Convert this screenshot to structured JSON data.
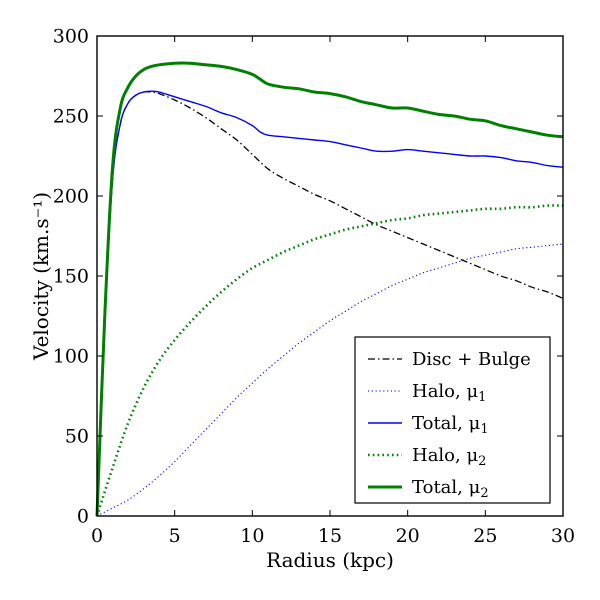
{
  "chart_data": {
    "type": "line",
    "title": "",
    "xlabel": "Radius (kpc)",
    "ylabel": "Velocity (km.s⁻¹)",
    "xlim": [
      0,
      30
    ],
    "ylim": [
      0,
      300
    ],
    "xticks": [
      0,
      5,
      10,
      15,
      20,
      25,
      30
    ],
    "yticks": [
      0,
      50,
      100,
      150,
      200,
      250,
      300
    ],
    "grid": false,
    "legend_position": "lower-right",
    "series": [
      {
        "name": "Disc + Bulge",
        "legend_main": "Disc + Bulge",
        "legend_sub": "",
        "color": "#000000",
        "style": "dashdot",
        "points": [
          [
            0,
            0
          ],
          [
            0.5,
            120
          ],
          [
            1,
            210
          ],
          [
            1.5,
            245
          ],
          [
            2,
            258
          ],
          [
            2.5,
            263
          ],
          [
            3,
            265
          ],
          [
            3.5,
            265
          ],
          [
            4,
            264
          ],
          [
            5,
            260
          ],
          [
            6,
            255
          ],
          [
            7,
            249
          ],
          [
            8,
            242
          ],
          [
            9,
            235
          ],
          [
            10,
            226
          ],
          [
            11,
            217
          ],
          [
            12,
            211
          ],
          [
            13,
            206
          ],
          [
            14,
            201
          ],
          [
            15,
            197
          ],
          [
            16,
            192
          ],
          [
            17,
            187
          ],
          [
            18,
            182
          ],
          [
            19,
            178
          ],
          [
            20,
            174
          ],
          [
            21,
            170
          ],
          [
            22,
            166
          ],
          [
            23,
            162
          ],
          [
            24,
            158
          ],
          [
            25,
            154
          ],
          [
            26,
            150
          ],
          [
            27,
            147
          ],
          [
            28,
            143
          ],
          [
            29,
            140
          ],
          [
            30,
            136
          ]
        ]
      },
      {
        "name": "Halo, μ1",
        "legend_main": "Halo, μ",
        "legend_sub": "1",
        "color": "#0000ff",
        "style": "dotted-thin",
        "points": [
          [
            0,
            0
          ],
          [
            1,
            5
          ],
          [
            2,
            10
          ],
          [
            3,
            17
          ],
          [
            4,
            25
          ],
          [
            5,
            34
          ],
          [
            6,
            44
          ],
          [
            7,
            54
          ],
          [
            8,
            64
          ],
          [
            9,
            74
          ],
          [
            10,
            83
          ],
          [
            11,
            92
          ],
          [
            12,
            100
          ],
          [
            13,
            108
          ],
          [
            14,
            115
          ],
          [
            15,
            122
          ],
          [
            16,
            128
          ],
          [
            17,
            134
          ],
          [
            18,
            139
          ],
          [
            19,
            144
          ],
          [
            20,
            148
          ],
          [
            21,
            152
          ],
          [
            22,
            155
          ],
          [
            23,
            158
          ],
          [
            24,
            161
          ],
          [
            25,
            163
          ],
          [
            26,
            165
          ],
          [
            27,
            167
          ],
          [
            28,
            168
          ],
          [
            29,
            169
          ],
          [
            30,
            170
          ]
        ]
      },
      {
        "name": "Total, μ1",
        "legend_main": "Total, μ",
        "legend_sub": "1",
        "color": "#0000ff",
        "style": "solid-thin",
        "points": [
          [
            0,
            0
          ],
          [
            0.5,
            120
          ],
          [
            1,
            210
          ],
          [
            1.5,
            245
          ],
          [
            2,
            258
          ],
          [
            2.5,
            263
          ],
          [
            3,
            265
          ],
          [
            3.5,
            265.5
          ],
          [
            4,
            265
          ],
          [
            5,
            262
          ],
          [
            6,
            259
          ],
          [
            7,
            256
          ],
          [
            8,
            252
          ],
          [
            9,
            249
          ],
          [
            10,
            244
          ],
          [
            10.5,
            240
          ],
          [
            11,
            238
          ],
          [
            12,
            237
          ],
          [
            13,
            236
          ],
          [
            14,
            235
          ],
          [
            15,
            234
          ],
          [
            16,
            232
          ],
          [
            17,
            230
          ],
          [
            18,
            228
          ],
          [
            19,
            228
          ],
          [
            20,
            229
          ],
          [
            21,
            228
          ],
          [
            22,
            227
          ],
          [
            23,
            226
          ],
          [
            24,
            225
          ],
          [
            25,
            225
          ],
          [
            26,
            224
          ],
          [
            27,
            222
          ],
          [
            28,
            221
          ],
          [
            29,
            219
          ],
          [
            30,
            218
          ]
        ]
      },
      {
        "name": "Halo, μ2",
        "legend_main": "Halo, μ",
        "legend_sub": "2",
        "color": "#008000",
        "style": "dotted-thick",
        "points": [
          [
            0,
            0
          ],
          [
            1,
            30
          ],
          [
            2,
            58
          ],
          [
            3,
            80
          ],
          [
            4,
            97
          ],
          [
            5,
            110
          ],
          [
            6,
            121
          ],
          [
            7,
            131
          ],
          [
            8,
            140
          ],
          [
            9,
            148
          ],
          [
            10,
            155
          ],
          [
            11,
            160
          ],
          [
            12,
            165
          ],
          [
            13,
            169
          ],
          [
            14,
            173
          ],
          [
            15,
            176
          ],
          [
            16,
            179
          ],
          [
            17,
            181
          ],
          [
            18,
            183
          ],
          [
            19,
            185
          ],
          [
            20,
            186
          ],
          [
            21,
            188
          ],
          [
            22,
            189
          ],
          [
            23,
            190
          ],
          [
            24,
            191
          ],
          [
            25,
            192
          ],
          [
            26,
            192
          ],
          [
            27,
            193
          ],
          [
            28,
            193
          ],
          [
            29,
            194
          ],
          [
            30,
            194
          ]
        ]
      },
      {
        "name": "Total, μ2",
        "legend_main": "Total, μ",
        "legend_sub": "2",
        "color": "#008000",
        "style": "solid-thick",
        "points": [
          [
            0,
            0
          ],
          [
            0.5,
            125
          ],
          [
            1,
            218
          ],
          [
            1.5,
            255
          ],
          [
            2,
            268
          ],
          [
            2.5,
            275
          ],
          [
            3,
            279
          ],
          [
            3.5,
            281
          ],
          [
            4,
            282
          ],
          [
            5,
            283
          ],
          [
            6,
            283
          ],
          [
            7,
            282
          ],
          [
            8,
            281
          ],
          [
            9,
            279
          ],
          [
            10,
            276
          ],
          [
            10.5,
            273
          ],
          [
            11,
            270
          ],
          [
            12,
            268
          ],
          [
            13,
            267
          ],
          [
            14,
            265
          ],
          [
            15,
            264
          ],
          [
            16,
            262
          ],
          [
            17,
            259
          ],
          [
            18,
            257
          ],
          [
            19,
            255
          ],
          [
            20,
            255
          ],
          [
            21,
            253
          ],
          [
            22,
            251
          ],
          [
            23,
            250
          ],
          [
            24,
            248
          ],
          [
            25,
            247
          ],
          [
            26,
            244
          ],
          [
            27,
            242
          ],
          [
            28,
            240
          ],
          [
            29,
            238
          ],
          [
            30,
            237
          ]
        ]
      }
    ]
  }
}
